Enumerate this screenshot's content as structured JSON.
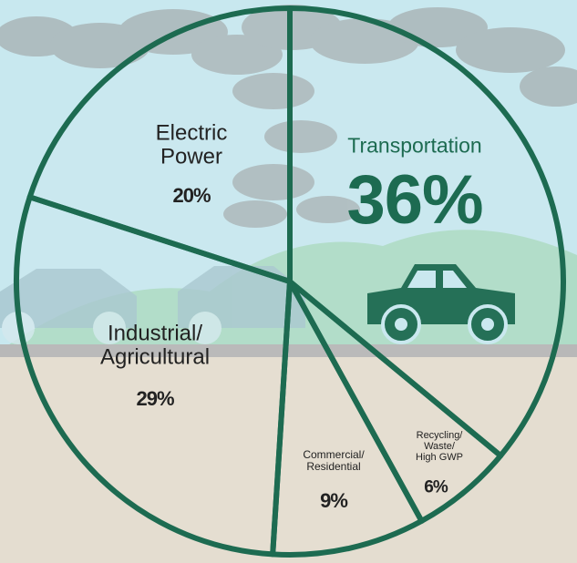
{
  "chart_data": {
    "type": "pie",
    "categories": [
      "Transportation",
      "Recycling/\nWaste/\nHigh GWP",
      "Commercial/\nResidential",
      "Industrial/\nAgricultural",
      "Electric\nPower"
    ],
    "values": [
      36,
      6,
      9,
      29,
      20
    ],
    "value_labels": [
      "36%",
      "6%",
      "9%",
      "29%",
      "20%"
    ],
    "stroke_color": "#1d6b51",
    "label_colors": [
      "#1d6b51",
      "#222222",
      "#222222",
      "#222222",
      "#222222"
    ]
  }
}
